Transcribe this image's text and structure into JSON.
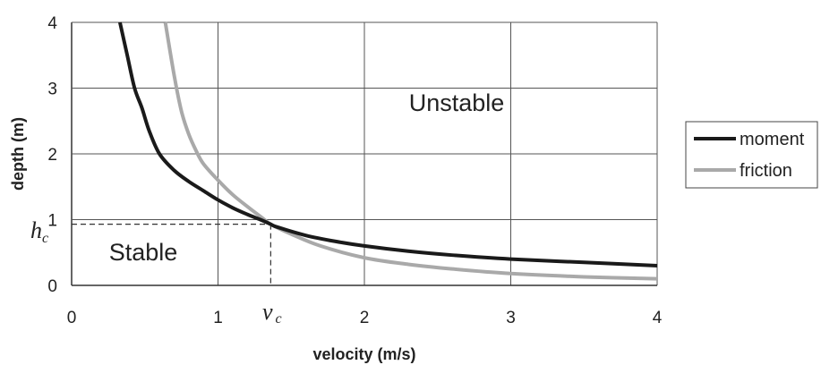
{
  "chart_data": {
    "type": "line",
    "xlabel": "velocity (m/s)",
    "ylabel": "depth (m)",
    "xlim": [
      0,
      4
    ],
    "ylim": [
      0,
      4
    ],
    "x_ticks": [
      "0",
      "1",
      "2",
      "3",
      "4"
    ],
    "y_ticks": [
      "0",
      "1",
      "2",
      "3",
      "4"
    ],
    "grid": true,
    "legend_position": "right",
    "series": [
      {
        "name": "moment",
        "color": "#1a1a1a",
        "x": [
          0.33,
          0.38,
          0.43,
          0.48,
          0.53,
          0.6,
          0.7,
          0.8,
          0.9,
          1.0,
          1.1,
          1.2,
          1.3,
          1.36,
          1.4,
          1.6,
          1.8,
          2.0,
          2.3,
          2.6,
          3.0,
          3.5,
          4.0
        ],
        "y": [
          4.0,
          3.5,
          3.0,
          2.7,
          2.35,
          2.0,
          1.75,
          1.58,
          1.44,
          1.3,
          1.18,
          1.08,
          0.99,
          0.93,
          0.89,
          0.76,
          0.67,
          0.6,
          0.52,
          0.46,
          0.4,
          0.35,
          0.3
        ]
      },
      {
        "name": "friction",
        "color": "#a9a9a9",
        "x": [
          0.64,
          0.7,
          0.75,
          0.8,
          0.85,
          0.9,
          1.0,
          1.1,
          1.2,
          1.3,
          1.36,
          1.5,
          1.7,
          2.0,
          2.3,
          2.6,
          3.0,
          3.5,
          4.0
        ],
        "y": [
          4.0,
          3.2,
          2.65,
          2.3,
          2.05,
          1.85,
          1.6,
          1.38,
          1.2,
          1.03,
          0.93,
          0.78,
          0.6,
          0.42,
          0.32,
          0.25,
          0.18,
          0.13,
          0.1
        ]
      }
    ],
    "annotations": {
      "unstable_label": "Unstable",
      "stable_label": "Stable",
      "critical_velocity_symbol": "v",
      "critical_velocity_sub": "c",
      "critical_depth_symbol": "h",
      "critical_depth_sub": "c",
      "critical_point": {
        "x": 1.36,
        "y": 0.93
      }
    }
  }
}
